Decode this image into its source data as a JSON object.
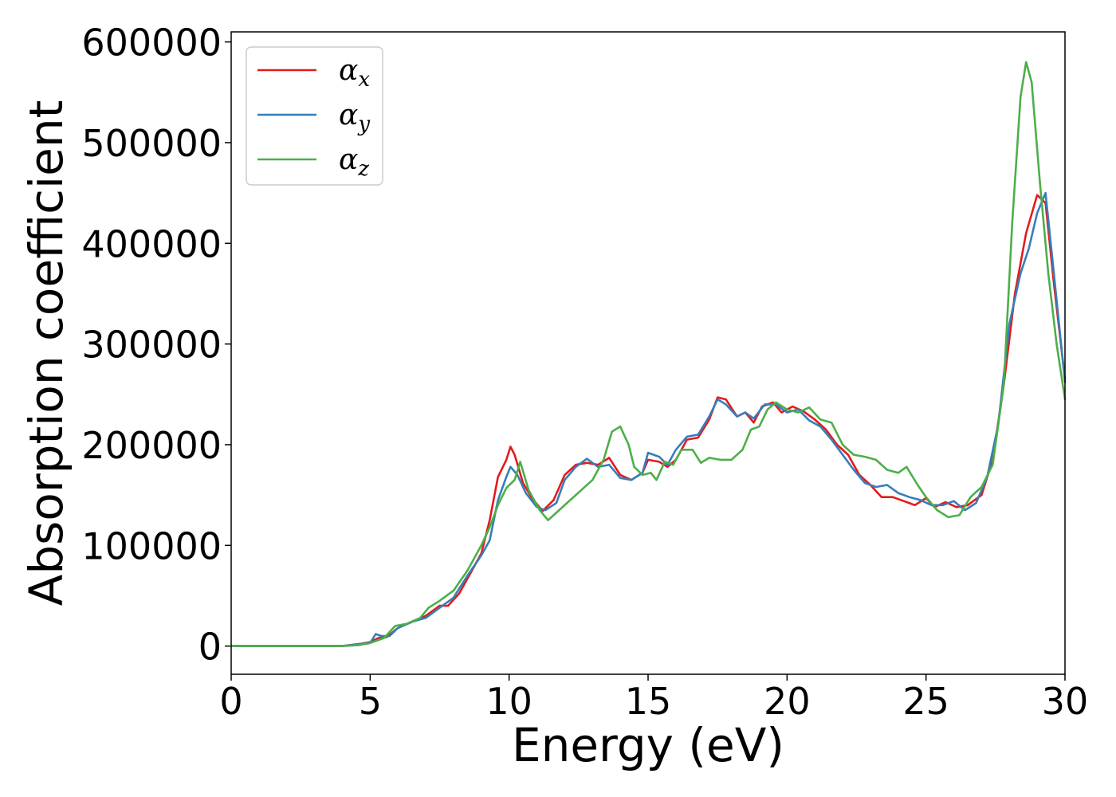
{
  "chart_data": {
    "type": "line",
    "title": "",
    "xlabel": "Energy (eV)",
    "ylabel": "Absorption coefficient",
    "xlim": [
      0,
      30
    ],
    "ylim": [
      -28000,
      610000
    ],
    "x_ticks": [
      0,
      5,
      10,
      15,
      20,
      25,
      30
    ],
    "y_ticks": [
      0,
      100000,
      200000,
      300000,
      400000,
      500000,
      600000
    ],
    "grid": false,
    "legend_position": "top-left",
    "series": [
      {
        "name": "α",
        "subscript": "x",
        "color": "#e41a1c",
        "points": [
          [
            0,
            0
          ],
          [
            2,
            0
          ],
          [
            4,
            0
          ],
          [
            4.6,
            2000
          ],
          [
            5,
            4000
          ],
          [
            5.3,
            8000
          ],
          [
            5.6,
            9000
          ],
          [
            6,
            18000
          ],
          [
            6.5,
            24000
          ],
          [
            7,
            30000
          ],
          [
            7.5,
            40000
          ],
          [
            7.8,
            40000
          ],
          [
            8.2,
            52000
          ],
          [
            8.6,
            72000
          ],
          [
            9,
            92000
          ],
          [
            9.3,
            125000
          ],
          [
            9.6,
            168000
          ],
          [
            9.9,
            185000
          ],
          [
            10.05,
            198000
          ],
          [
            10.2,
            190000
          ],
          [
            10.5,
            162000
          ],
          [
            10.8,
            148000
          ],
          [
            11.2,
            134000
          ],
          [
            11.6,
            145000
          ],
          [
            12,
            170000
          ],
          [
            12.4,
            180000
          ],
          [
            12.8,
            182000
          ],
          [
            13.2,
            180000
          ],
          [
            13.6,
            187000
          ],
          [
            14,
            170000
          ],
          [
            14.4,
            165000
          ],
          [
            14.8,
            172000
          ],
          [
            15,
            185000
          ],
          [
            15.4,
            183000
          ],
          [
            15.7,
            178000
          ],
          [
            16,
            185000
          ],
          [
            16.4,
            205000
          ],
          [
            16.8,
            207000
          ],
          [
            17.2,
            225000
          ],
          [
            17.5,
            247000
          ],
          [
            17.8,
            245000
          ],
          [
            18.2,
            228000
          ],
          [
            18.5,
            232000
          ],
          [
            18.8,
            222000
          ],
          [
            19.1,
            238000
          ],
          [
            19.5,
            242000
          ],
          [
            19.8,
            232000
          ],
          [
            20.2,
            238000
          ],
          [
            20.6,
            233000
          ],
          [
            21,
            225000
          ],
          [
            21.4,
            215000
          ],
          [
            21.8,
            200000
          ],
          [
            22.2,
            190000
          ],
          [
            22.6,
            170000
          ],
          [
            23,
            160000
          ],
          [
            23.4,
            148000
          ],
          [
            23.8,
            148000
          ],
          [
            24.2,
            144000
          ],
          [
            24.6,
            140000
          ],
          [
            25,
            147000
          ],
          [
            25.3,
            138000
          ],
          [
            25.7,
            143000
          ],
          [
            26.1,
            138000
          ],
          [
            26.5,
            140000
          ],
          [
            27,
            150000
          ],
          [
            27.4,
            185000
          ],
          [
            27.8,
            260000
          ],
          [
            28.2,
            350000
          ],
          [
            28.6,
            410000
          ],
          [
            29,
            448000
          ],
          [
            29.3,
            440000
          ],
          [
            29.6,
            360000
          ],
          [
            30,
            265000
          ]
        ]
      },
      {
        "name": "α",
        "subscript": "y",
        "color": "#377eb8",
        "points": [
          [
            0,
            0
          ],
          [
            2,
            0
          ],
          [
            4,
            0
          ],
          [
            4.6,
            2000
          ],
          [
            5,
            3000
          ],
          [
            5.2,
            12000
          ],
          [
            5.4,
            10000
          ],
          [
            5.7,
            10000
          ],
          [
            6,
            18000
          ],
          [
            6.5,
            24000
          ],
          [
            7,
            28000
          ],
          [
            7.5,
            38000
          ],
          [
            8,
            48000
          ],
          [
            8.5,
            70000
          ],
          [
            9,
            90000
          ],
          [
            9.3,
            105000
          ],
          [
            9.6,
            145000
          ],
          [
            9.9,
            168000
          ],
          [
            10.05,
            178000
          ],
          [
            10.3,
            170000
          ],
          [
            10.6,
            152000
          ],
          [
            11,
            138000
          ],
          [
            11.3,
            135000
          ],
          [
            11.7,
            142000
          ],
          [
            12,
            165000
          ],
          [
            12.4,
            178000
          ],
          [
            12.8,
            186000
          ],
          [
            13.2,
            178000
          ],
          [
            13.6,
            180000
          ],
          [
            14,
            167000
          ],
          [
            14.4,
            165000
          ],
          [
            14.8,
            172000
          ],
          [
            15,
            192000
          ],
          [
            15.4,
            188000
          ],
          [
            15.7,
            180000
          ],
          [
            16,
            195000
          ],
          [
            16.4,
            208000
          ],
          [
            16.8,
            210000
          ],
          [
            17.2,
            228000
          ],
          [
            17.5,
            245000
          ],
          [
            17.8,
            240000
          ],
          [
            18.2,
            228000
          ],
          [
            18.5,
            232000
          ],
          [
            18.8,
            226000
          ],
          [
            19.2,
            240000
          ],
          [
            19.6,
            240000
          ],
          [
            20,
            232000
          ],
          [
            20.4,
            235000
          ],
          [
            20.8,
            224000
          ],
          [
            21.2,
            218000
          ],
          [
            21.6,
            205000
          ],
          [
            22,
            190000
          ],
          [
            22.4,
            175000
          ],
          [
            22.8,
            162000
          ],
          [
            23.2,
            158000
          ],
          [
            23.6,
            160000
          ],
          [
            24,
            152000
          ],
          [
            24.4,
            148000
          ],
          [
            24.8,
            145000
          ],
          [
            25.2,
            140000
          ],
          [
            25.6,
            140000
          ],
          [
            26,
            144000
          ],
          [
            26.4,
            135000
          ],
          [
            26.8,
            142000
          ],
          [
            27.2,
            168000
          ],
          [
            27.6,
            220000
          ],
          [
            28,
            320000
          ],
          [
            28.4,
            370000
          ],
          [
            28.7,
            395000
          ],
          [
            29,
            430000
          ],
          [
            29.3,
            450000
          ],
          [
            29.6,
            370000
          ],
          [
            30,
            262000
          ]
        ]
      },
      {
        "name": "α",
        "subscript": "z",
        "color": "#4daf4a",
        "points": [
          [
            0,
            0
          ],
          [
            2,
            0
          ],
          [
            4,
            0
          ],
          [
            4.6,
            1000
          ],
          [
            5,
            3000
          ],
          [
            5.5,
            8000
          ],
          [
            5.9,
            20000
          ],
          [
            6.3,
            22000
          ],
          [
            6.8,
            28000
          ],
          [
            7.1,
            38000
          ],
          [
            7.5,
            45000
          ],
          [
            8,
            55000
          ],
          [
            8.5,
            75000
          ],
          [
            9,
            100000
          ],
          [
            9.3,
            118000
          ],
          [
            9.6,
            140000
          ],
          [
            9.9,
            157000
          ],
          [
            10.2,
            165000
          ],
          [
            10.4,
            183000
          ],
          [
            10.7,
            155000
          ],
          [
            11.1,
            135000
          ],
          [
            11.4,
            125000
          ],
          [
            11.8,
            135000
          ],
          [
            12.2,
            145000
          ],
          [
            12.6,
            155000
          ],
          [
            13,
            165000
          ],
          [
            13.4,
            185000
          ],
          [
            13.7,
            213000
          ],
          [
            14,
            218000
          ],
          [
            14.3,
            200000
          ],
          [
            14.5,
            178000
          ],
          [
            14.8,
            170000
          ],
          [
            15.1,
            172000
          ],
          [
            15.3,
            165000
          ],
          [
            15.6,
            183000
          ],
          [
            15.9,
            180000
          ],
          [
            16.2,
            195000
          ],
          [
            16.6,
            195000
          ],
          [
            16.9,
            182000
          ],
          [
            17.2,
            187000
          ],
          [
            17.6,
            185000
          ],
          [
            18,
            185000
          ],
          [
            18.4,
            195000
          ],
          [
            18.7,
            215000
          ],
          [
            19,
            218000
          ],
          [
            19.3,
            235000
          ],
          [
            19.6,
            242000
          ],
          [
            20,
            235000
          ],
          [
            20.4,
            232000
          ],
          [
            20.8,
            237000
          ],
          [
            21.2,
            225000
          ],
          [
            21.6,
            222000
          ],
          [
            22,
            200000
          ],
          [
            22.4,
            190000
          ],
          [
            22.8,
            188000
          ],
          [
            23.2,
            185000
          ],
          [
            23.6,
            175000
          ],
          [
            24,
            172000
          ],
          [
            24.3,
            178000
          ],
          [
            24.7,
            160000
          ],
          [
            25,
            148000
          ],
          [
            25.4,
            135000
          ],
          [
            25.8,
            128000
          ],
          [
            26.2,
            130000
          ],
          [
            26.6,
            148000
          ],
          [
            27,
            158000
          ],
          [
            27.4,
            180000
          ],
          [
            27.8,
            260000
          ],
          [
            28.1,
            420000
          ],
          [
            28.4,
            545000
          ],
          [
            28.6,
            580000
          ],
          [
            28.8,
            560000
          ],
          [
            29.1,
            460000
          ],
          [
            29.4,
            370000
          ],
          [
            29.7,
            300000
          ],
          [
            30,
            245000
          ]
        ]
      }
    ]
  }
}
